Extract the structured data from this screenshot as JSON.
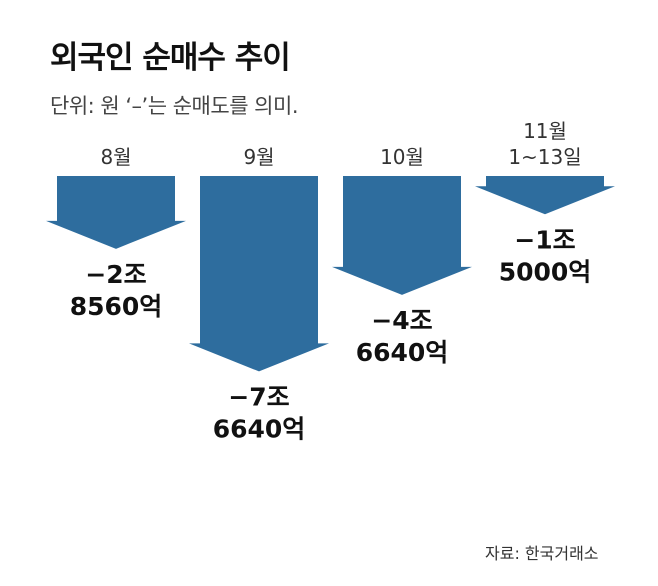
{
  "header": {
    "title": "외국인 순매수 추이",
    "unit_note": "단위: 원  ‘–’는 순매도를 의미."
  },
  "source": "자료: 한국거래소",
  "colors": {
    "arrow_fill": "#2e6d9e"
  },
  "chart_data": {
    "type": "bar",
    "title": "외국인 순매수 추이",
    "unit": "원",
    "categories": [
      [
        "8월"
      ],
      [
        "9월"
      ],
      [
        "10월"
      ],
      [
        "11월",
        "1~13일"
      ]
    ],
    "values": [
      -28560,
      -76640,
      -46640,
      -15000
    ],
    "value_unit": "억원",
    "value_labels": [
      [
        "−2조",
        "8560억"
      ],
      [
        "−7조",
        "6640억"
      ],
      [
        "−4조",
        "6640억"
      ],
      [
        "−1조",
        "5000억"
      ]
    ],
    "direction": "down"
  }
}
